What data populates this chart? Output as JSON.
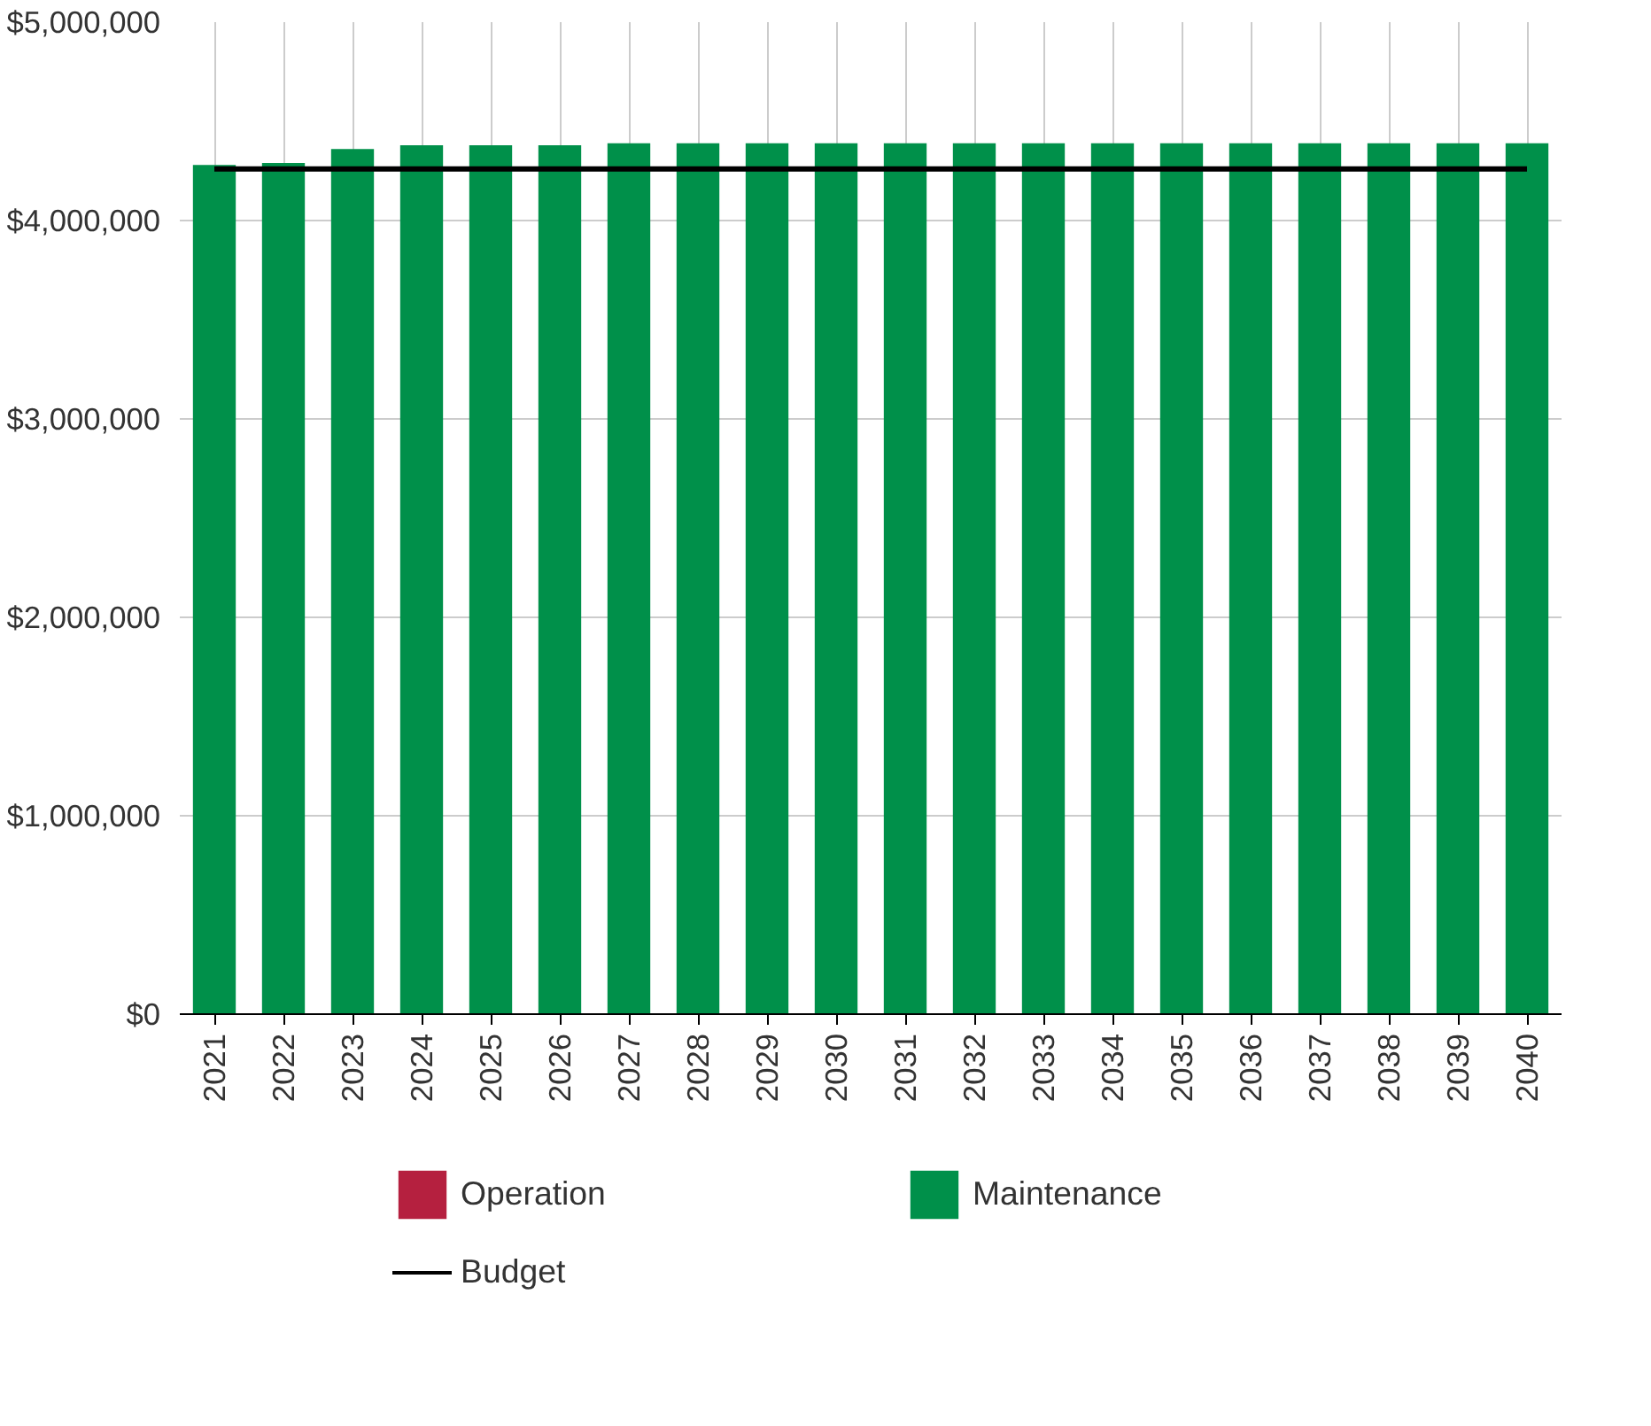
{
  "chart_data": {
    "type": "bar",
    "stacked": true,
    "categories": [
      "2021",
      "2022",
      "2023",
      "2024",
      "2025",
      "2026",
      "2027",
      "2028",
      "2029",
      "2030",
      "2031",
      "2032",
      "2033",
      "2034",
      "2035",
      "2036",
      "2037",
      "2038",
      "2039",
      "2040"
    ],
    "series": [
      {
        "name": "Operation",
        "color": "#b5203f",
        "values": [
          0,
          0,
          0,
          0,
          0,
          0,
          0,
          0,
          0,
          0,
          0,
          0,
          0,
          0,
          0,
          0,
          0,
          0,
          0,
          0
        ]
      },
      {
        "name": "Maintenance",
        "color": "#00904a",
        "values": [
          4280000,
          4290000,
          4360000,
          4380000,
          4380000,
          4380000,
          4390000,
          4390000,
          4390000,
          4390000,
          4390000,
          4390000,
          4390000,
          4390000,
          4390000,
          4390000,
          4390000,
          4390000,
          4390000,
          4390000
        ]
      },
      {
        "name": "Budget",
        "type": "line",
        "color": "#000000",
        "values": [
          4260000,
          4260000,
          4260000,
          4260000,
          4260000,
          4260000,
          4260000,
          4260000,
          4260000,
          4260000,
          4260000,
          4260000,
          4260000,
          4260000,
          4260000,
          4260000,
          4260000,
          4260000,
          4260000,
          4260000
        ]
      }
    ],
    "ylim": [
      0,
      5000000
    ],
    "yticks": [
      {
        "value": 0,
        "label": "$0"
      },
      {
        "value": 1000000,
        "label": "$1,000,000"
      },
      {
        "value": 2000000,
        "label": "$2,000,000"
      },
      {
        "value": 3000000,
        "label": "$3,000,000"
      },
      {
        "value": 4000000,
        "label": "$4,000,000"
      },
      {
        "value": 5000000,
        "label": "$5,000,000"
      }
    ],
    "grid": true,
    "legend": "bottom"
  }
}
